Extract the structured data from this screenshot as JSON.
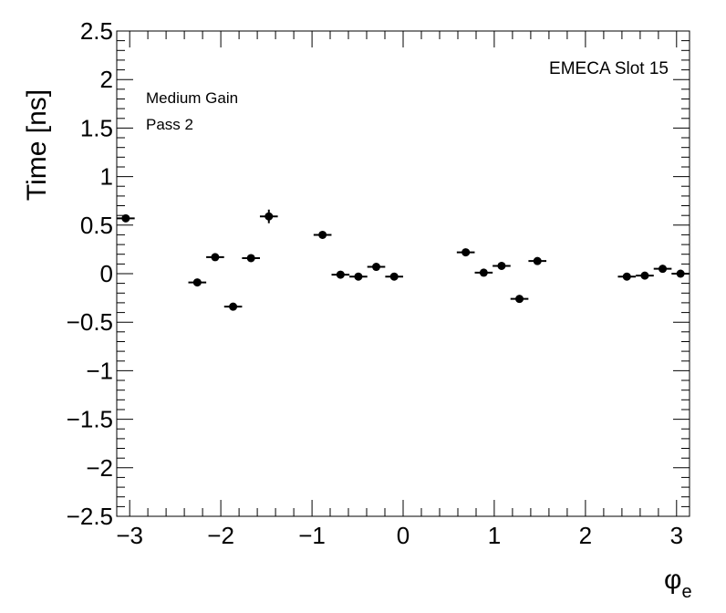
{
  "chart_data": {
    "type": "scatter",
    "title": "",
    "xlabel_symbol": "φ",
    "xlabel_subscript": "e",
    "ylabel": "Time [ns]",
    "xlim": [
      -3.1416,
      3.1416
    ],
    "ylim": [
      -2.5,
      2.5
    ],
    "grid": false,
    "x_ticks": [
      -3,
      -2,
      -1,
      0,
      1,
      2,
      3
    ],
    "x_tick_labels": [
      "−3",
      "−2",
      "−1",
      "0",
      "1",
      "2",
      "3"
    ],
    "y_ticks": [
      -2.5,
      -2,
      -1.5,
      -1,
      -0.5,
      0,
      0.5,
      1,
      1.5,
      2,
      2.5
    ],
    "y_tick_labels": [
      "−2.5",
      "−2",
      "−1.5",
      "−1",
      "−0.5",
      "0",
      "0.5",
      "1",
      "1.5",
      "2",
      "2.5"
    ],
    "annotations": {
      "gain": "Medium Gain",
      "pass": "Pass 2",
      "slot": "EMECA Slot 15"
    },
    "x_bin_halfwidth": 0.0982,
    "points": [
      {
        "x": -3.043,
        "y": 0.57,
        "yerr": 0.02
      },
      {
        "x": -2.258,
        "y": -0.09,
        "yerr": 0.02
      },
      {
        "x": -2.062,
        "y": 0.17,
        "yerr": 0.02
      },
      {
        "x": -1.865,
        "y": -0.34,
        "yerr": 0.02
      },
      {
        "x": -1.669,
        "y": 0.16,
        "yerr": 0.02
      },
      {
        "x": -1.473,
        "y": 0.59,
        "yerr": 0.07
      },
      {
        "x": -0.884,
        "y": 0.4,
        "yerr": 0.02
      },
      {
        "x": -0.687,
        "y": -0.01,
        "yerr": 0.02
      },
      {
        "x": -0.491,
        "y": -0.03,
        "yerr": 0.02
      },
      {
        "x": -0.295,
        "y": 0.07,
        "yerr": 0.02
      },
      {
        "x": -0.098,
        "y": -0.03,
        "yerr": 0.02
      },
      {
        "x": 0.687,
        "y": 0.22,
        "yerr": 0.02
      },
      {
        "x": 0.884,
        "y": 0.01,
        "yerr": 0.02
      },
      {
        "x": 1.08,
        "y": 0.08,
        "yerr": 0.02
      },
      {
        "x": 1.276,
        "y": -0.26,
        "yerr": 0.02
      },
      {
        "x": 1.473,
        "y": 0.13,
        "yerr": 0.02
      },
      {
        "x": 2.454,
        "y": -0.03,
        "yerr": 0.02
      },
      {
        "x": 2.651,
        "y": -0.02,
        "yerr": 0.02
      },
      {
        "x": 2.847,
        "y": 0.05,
        "yerr": 0.02
      },
      {
        "x": 3.043,
        "y": 0.0,
        "yerr": 0.02
      }
    ]
  }
}
